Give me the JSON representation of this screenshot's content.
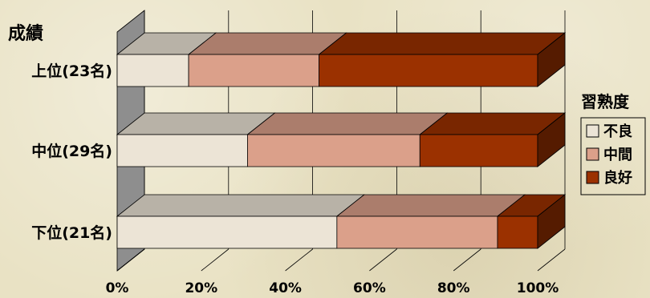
{
  "chart_data": {
    "type": "bar",
    "orientation": "horizontal",
    "stacked": "100%",
    "title": "成績",
    "categories": [
      "上位(23名)",
      "中位(29名)",
      "下位(21名)"
    ],
    "series": [
      {
        "name": "不良",
        "values": [
          17,
          31,
          52
        ],
        "color": "#ece4d6"
      },
      {
        "name": "中間",
        "values": [
          31,
          41,
          38
        ],
        "color": "#dba08a"
      },
      {
        "name": "良好",
        "values": [
          52,
          28,
          9.5
        ],
        "color": "#9b3100"
      }
    ],
    "xlim": [
      0,
      100
    ],
    "xticks": [
      "0%",
      "20%",
      "40%",
      "60%",
      "80%",
      "100%"
    ],
    "legend_title": "習熟度",
    "legend_position": "right",
    "grid": true
  }
}
